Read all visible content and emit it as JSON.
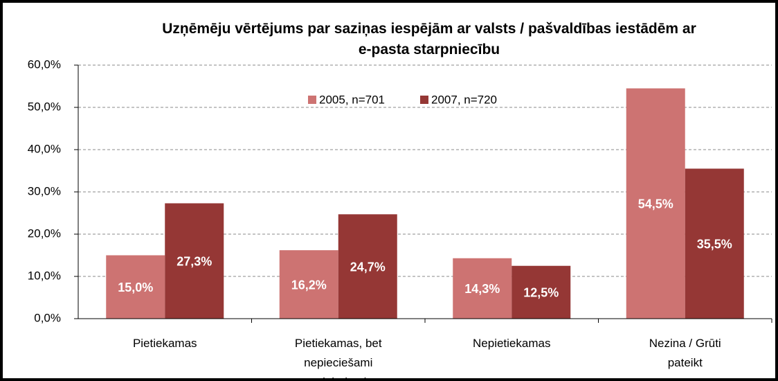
{
  "chart_data": {
    "type": "bar",
    "title": "Uzņēmēju vērtējums par saziņas iespējām ar valsts / pašvaldības iestādēm ar e-pasta starpniecību",
    "categories": [
      "Pietiekamas",
      "Pietiekamas, bet nepieciešami uzlabojumi",
      "Nepietiekamas",
      "Nezina / Grūti pateikt"
    ],
    "series": [
      {
        "name": "2005, n=701",
        "color": "#cd7372",
        "values": [
          15.0,
          16.2,
          14.3,
          54.5
        ],
        "value_labels": [
          "15,0%",
          "16,2%",
          "14,3%",
          "54,5%"
        ]
      },
      {
        "name": "2007, n=720",
        "color": "#953735",
        "values": [
          27.3,
          24.7,
          12.5,
          35.5
        ],
        "value_labels": [
          "27,3%",
          "24,7%",
          "12,5%",
          "35,5%"
        ]
      }
    ],
    "ylim": [
      0,
      60
    ],
    "yticks": [
      {
        "value": 0,
        "label": "0,0%"
      },
      {
        "value": 10,
        "label": "10,0%"
      },
      {
        "value": 20,
        "label": "20,0%"
      },
      {
        "value": 30,
        "label": "30,0%"
      },
      {
        "value": 40,
        "label": "40,0%"
      },
      {
        "value": 50,
        "label": "50,0%"
      },
      {
        "value": 60,
        "label": "60,0%"
      }
    ],
    "grid": true,
    "legend": "top"
  }
}
